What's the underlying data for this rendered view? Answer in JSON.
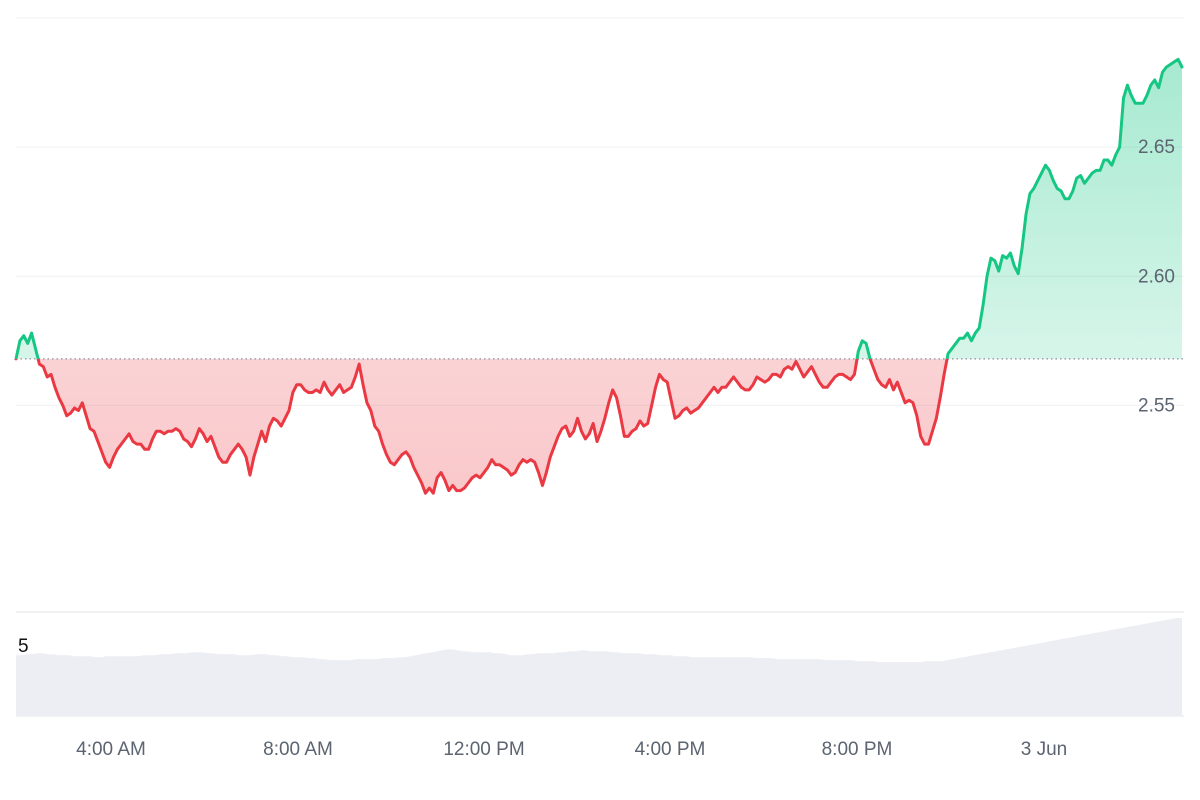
{
  "chart_data": {
    "type": "area",
    "baseline": 2.568,
    "ylim": [
      2.47,
      2.7
    ],
    "y_ticks": [
      "2.55",
      "2.60",
      "2.65"
    ],
    "x_ticks": [
      "4:00 AM",
      "8:00 AM",
      "12:00 PM",
      "4:00 PM",
      "8:00 PM",
      "3 Jun"
    ],
    "volume_axis_label": "5",
    "colors": {
      "up": "#16c784",
      "down": "#ea3943",
      "baseline": "#8a8f98",
      "volume": "#eceef3"
    },
    "grid": true,
    "series": [
      {
        "values": [
          2.568,
          2.575,
          2.577,
          2.574,
          2.578,
          2.572,
          2.566,
          2.565,
          2.561,
          2.562,
          2.557,
          2.553,
          2.55,
          2.546,
          2.547,
          2.549,
          2.548,
          2.551,
          2.546,
          2.541,
          2.54,
          2.536,
          2.532,
          2.528,
          2.526,
          2.53,
          2.533,
          2.535,
          2.537,
          2.539,
          2.536,
          2.535,
          2.535,
          2.533,
          2.533,
          2.537,
          2.54,
          2.54,
          2.539,
          2.54,
          2.54,
          2.541,
          2.54,
          2.537,
          2.536,
          2.534,
          2.537,
          2.541,
          2.539,
          2.536,
          2.538,
          2.534,
          2.53,
          2.528,
          2.528,
          2.531,
          2.533,
          2.535,
          2.533,
          2.53,
          2.523,
          2.53,
          2.535,
          2.54,
          2.536,
          2.542,
          2.545,
          2.544,
          2.542,
          2.545,
          2.548,
          2.555,
          2.558,
          2.558,
          2.556,
          2.555,
          2.555,
          2.556,
          2.555,
          2.559,
          2.556,
          2.554,
          2.556,
          2.558,
          2.555,
          2.556,
          2.557,
          2.561,
          2.566,
          2.558,
          2.551,
          2.548,
          2.542,
          2.54,
          2.535,
          2.531,
          2.528,
          2.527,
          2.529,
          2.531,
          2.532,
          2.53,
          2.526,
          2.523,
          2.52,
          2.516,
          2.518,
          2.516,
          2.522,
          2.524,
          2.521,
          2.517,
          2.519,
          2.517,
          2.517,
          2.518,
          2.52,
          2.522,
          2.523,
          2.522,
          2.524,
          2.526,
          2.529,
          2.527,
          2.527,
          2.526,
          2.525,
          2.523,
          2.524,
          2.527,
          2.529,
          2.528,
          2.529,
          2.528,
          2.524,
          2.519,
          2.524,
          2.53,
          2.534,
          2.538,
          2.541,
          2.542,
          2.538,
          2.54,
          2.545,
          2.54,
          2.537,
          2.539,
          2.543,
          2.536,
          2.54,
          2.545,
          2.551,
          2.556,
          2.553,
          2.546,
          2.538,
          2.538,
          2.54,
          2.541,
          2.544,
          2.542,
          2.543,
          2.55,
          2.557,
          2.562,
          2.56,
          2.559,
          2.552,
          2.545,
          2.546,
          2.548,
          2.549,
          2.547,
          2.548,
          2.549,
          2.551,
          2.553,
          2.555,
          2.557,
          2.555,
          2.557,
          2.557,
          2.559,
          2.561,
          2.559,
          2.557,
          2.556,
          2.556,
          2.558,
          2.561,
          2.56,
          2.559,
          2.56,
          2.562,
          2.562,
          2.561,
          2.564,
          2.565,
          2.564,
          2.567,
          2.564,
          2.561,
          2.563,
          2.565,
          2.562,
          2.559,
          2.557,
          2.557,
          2.559,
          2.561,
          2.562,
          2.562,
          2.561,
          2.56,
          2.562,
          2.571,
          2.575,
          2.574,
          2.568,
          2.564,
          2.56,
          2.558,
          2.557,
          2.56,
          2.556,
          2.559,
          2.555,
          2.551,
          2.552,
          2.551,
          2.546,
          2.538,
          2.535,
          2.535,
          2.54,
          2.545,
          2.553,
          2.562,
          2.57,
          2.572,
          2.574,
          2.576,
          2.576,
          2.578,
          2.575,
          2.578,
          2.58,
          2.589,
          2.6,
          2.607,
          2.606,
          2.602,
          2.608,
          2.607,
          2.609,
          2.604,
          2.601,
          2.611,
          2.624,
          2.632,
          2.634,
          2.637,
          2.64,
          2.643,
          2.641,
          2.637,
          2.634,
          2.633,
          2.63,
          2.63,
          2.633,
          2.638,
          2.639,
          2.636,
          2.638,
          2.64,
          2.641,
          2.641,
          2.645,
          2.645,
          2.643,
          2.647,
          2.65,
          2.669,
          2.674,
          2.67,
          2.667,
          2.667,
          2.667,
          2.67,
          2.674,
          2.676,
          2.673,
          2.679,
          2.681,
          2.682,
          2.683,
          2.684,
          2.681
        ]
      }
    ],
    "volume": [
      0.62,
      0.62,
      0.63,
      0.63,
      0.64,
      0.64,
      0.63,
      0.63,
      0.62,
      0.62,
      0.62,
      0.61,
      0.61,
      0.61,
      0.61,
      0.6,
      0.6,
      0.61,
      0.61,
      0.61,
      0.61,
      0.61,
      0.61,
      0.61,
      0.62,
      0.62,
      0.62,
      0.63,
      0.63,
      0.63,
      0.64,
      0.64,
      0.64,
      0.65,
      0.65,
      0.65,
      0.64,
      0.64,
      0.63,
      0.63,
      0.63,
      0.63,
      0.62,
      0.62,
      0.62,
      0.63,
      0.63,
      0.63,
      0.62,
      0.62,
      0.61,
      0.61,
      0.6,
      0.6,
      0.6,
      0.59,
      0.59,
      0.58,
      0.58,
      0.57,
      0.57,
      0.57,
      0.57,
      0.57,
      0.58,
      0.58,
      0.58,
      0.58,
      0.58,
      0.59,
      0.59,
      0.59,
      0.6,
      0.6,
      0.61,
      0.62,
      0.63,
      0.64,
      0.65,
      0.66,
      0.67,
      0.68,
      0.68,
      0.67,
      0.66,
      0.66,
      0.65,
      0.65,
      0.65,
      0.65,
      0.64,
      0.64,
      0.63,
      0.62,
      0.62,
      0.62,
      0.63,
      0.63,
      0.64,
      0.64,
      0.64,
      0.64,
      0.65,
      0.65,
      0.66,
      0.66,
      0.67,
      0.67,
      0.66,
      0.66,
      0.66,
      0.66,
      0.65,
      0.65,
      0.64,
      0.64,
      0.64,
      0.64,
      0.63,
      0.63,
      0.63,
      0.62,
      0.62,
      0.62,
      0.61,
      0.61,
      0.61,
      0.6,
      0.6,
      0.6,
      0.6,
      0.6,
      0.6,
      0.6,
      0.6,
      0.6,
      0.6,
      0.6,
      0.6,
      0.59,
      0.59,
      0.59,
      0.59,
      0.58,
      0.58,
      0.58,
      0.58,
      0.58,
      0.58,
      0.58,
      0.58,
      0.58,
      0.57,
      0.57,
      0.57,
      0.57,
      0.57,
      0.57,
      0.56,
      0.56,
      0.56,
      0.56,
      0.55,
      0.55,
      0.55,
      0.55,
      0.55,
      0.55,
      0.55,
      0.55,
      0.55,
      0.56,
      0.56,
      0.56,
      0.56,
      0.57,
      0.58,
      0.59,
      0.6,
      0.61,
      0.62,
      0.63,
      0.64,
      0.65,
      0.66,
      0.67,
      0.68,
      0.69,
      0.7,
      0.71,
      0.72,
      0.73,
      0.74,
      0.75,
      0.76,
      0.77,
      0.78,
      0.79,
      0.8,
      0.81,
      0.82,
      0.83,
      0.84,
      0.85,
      0.86,
      0.87,
      0.88,
      0.89,
      0.9,
      0.91,
      0.92,
      0.93,
      0.94,
      0.95,
      0.96,
      0.97,
      0.98,
      0.99,
      1.0,
      1.0
    ]
  }
}
